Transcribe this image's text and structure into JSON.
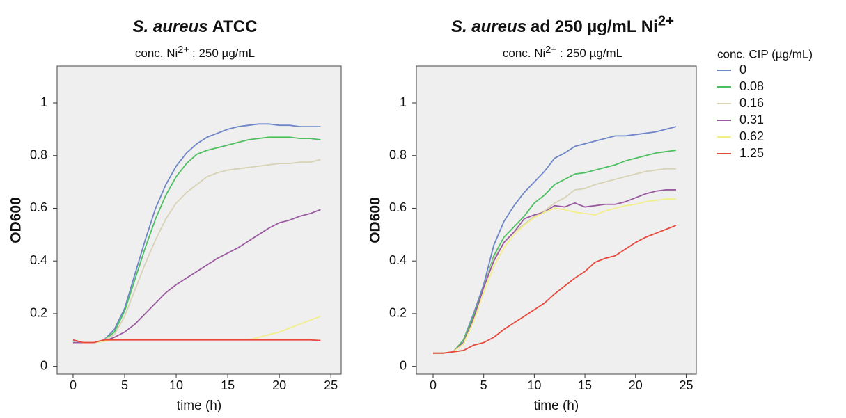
{
  "chart_data": [
    {
      "type": "line",
      "title": [
        "S. aureus",
        "ATCC"
      ],
      "subtitle": [
        "conc. Ni",
        "2+",
        ": 250 µg/mL"
      ],
      "x_label": "time (h)",
      "y_label": "OD600",
      "x": [
        0,
        1,
        2,
        3,
        4,
        5,
        6,
        7,
        8,
        9,
        10,
        11,
        12,
        13,
        14,
        15,
        16,
        17,
        18,
        19,
        20,
        21,
        22,
        23,
        24
      ],
      "xlim": [
        -1.55,
        26
      ],
      "xticks": [
        0,
        5,
        10,
        15,
        20,
        25
      ],
      "ylim": [
        -0.03,
        1.14
      ],
      "yticks": [
        0,
        0.2,
        0.4,
        0.6,
        0.8,
        1
      ],
      "grid": false,
      "series": [
        {
          "name": "0",
          "color": "#6e86c8",
          "values": [
            0.09,
            0.09,
            0.09,
            0.1,
            0.14,
            0.22,
            0.35,
            0.48,
            0.6,
            0.69,
            0.76,
            0.81,
            0.845,
            0.87,
            0.885,
            0.9,
            0.91,
            0.915,
            0.92,
            0.92,
            0.915,
            0.915,
            0.91,
            0.91,
            0.91
          ]
        },
        {
          "name": "0.08",
          "color": "#4cc060",
          "values": [
            0.09,
            0.09,
            0.09,
            0.1,
            0.13,
            0.21,
            0.33,
            0.45,
            0.56,
            0.65,
            0.72,
            0.77,
            0.805,
            0.82,
            0.83,
            0.84,
            0.85,
            0.86,
            0.865,
            0.87,
            0.87,
            0.87,
            0.865,
            0.865,
            0.86
          ]
        },
        {
          "name": "0.16",
          "color": "#d7d2b4",
          "values": [
            0.09,
            0.09,
            0.09,
            0.1,
            0.12,
            0.19,
            0.29,
            0.39,
            0.48,
            0.56,
            0.62,
            0.66,
            0.69,
            0.72,
            0.735,
            0.745,
            0.75,
            0.755,
            0.76,
            0.765,
            0.77,
            0.77,
            0.775,
            0.775,
            0.785
          ]
        },
        {
          "name": "0.31",
          "color": "#9a5aa0",
          "values": [
            0.09,
            0.09,
            0.09,
            0.095,
            0.11,
            0.13,
            0.16,
            0.2,
            0.24,
            0.28,
            0.31,
            0.335,
            0.36,
            0.385,
            0.41,
            0.43,
            0.45,
            0.475,
            0.5,
            0.525,
            0.545,
            0.555,
            0.57,
            0.58,
            0.595
          ]
        },
        {
          "name": "0.62",
          "color": "#f2ef8a",
          "values": [
            0.1,
            0.09,
            0.09,
            0.095,
            0.1,
            0.1,
            0.1,
            0.1,
            0.1,
            0.1,
            0.1,
            0.1,
            0.1,
            0.1,
            0.1,
            0.1,
            0.1,
            0.1,
            0.11,
            0.12,
            0.13,
            0.145,
            0.16,
            0.175,
            0.19
          ]
        },
        {
          "name": "1.25",
          "color": "#e8483c",
          "values": [
            0.1,
            0.09,
            0.09,
            0.1,
            0.1,
            0.1,
            0.1,
            0.1,
            0.1,
            0.1,
            0.1,
            0.1,
            0.1,
            0.1,
            0.1,
            0.1,
            0.1,
            0.1,
            0.1,
            0.1,
            0.1,
            0.1,
            0.1,
            0.1,
            0.098
          ]
        }
      ]
    },
    {
      "type": "line",
      "title": [
        "S. aureus",
        "ad 250 µg/mL Ni",
        "2+"
      ],
      "subtitle": [
        "conc. Ni",
        "2+",
        ": 250 µg/mL"
      ],
      "x_label": "time (h)",
      "y_label": "OD600",
      "legend_title": "conc. CIP (µg/mL)",
      "x": [
        0,
        1,
        2,
        3,
        4,
        5,
        6,
        7,
        8,
        9,
        10,
        11,
        12,
        13,
        14,
        15,
        16,
        17,
        18,
        19,
        20,
        21,
        22,
        23,
        24
      ],
      "xlim": [
        -1.65,
        26
      ],
      "xticks": [
        0,
        5,
        10,
        15,
        20,
        25
      ],
      "ylim": [
        -0.03,
        1.14
      ],
      "yticks": [
        0,
        0.2,
        0.4,
        0.6,
        0.8,
        1
      ],
      "grid": false,
      "series": [
        {
          "name": "0",
          "color": "#6e86c8",
          "values": [
            0.05,
            0.05,
            0.055,
            0.1,
            0.2,
            0.31,
            0.46,
            0.55,
            0.61,
            0.66,
            0.7,
            0.74,
            0.79,
            0.81,
            0.835,
            0.845,
            0.855,
            0.865,
            0.875,
            0.875,
            0.88,
            0.885,
            0.89,
            0.9,
            0.91
          ]
        },
        {
          "name": "0.08",
          "color": "#4cc060",
          "values": [
            0.05,
            0.05,
            0.055,
            0.1,
            0.19,
            0.3,
            0.42,
            0.49,
            0.53,
            0.57,
            0.62,
            0.65,
            0.69,
            0.71,
            0.73,
            0.735,
            0.745,
            0.755,
            0.765,
            0.78,
            0.79,
            0.8,
            0.81,
            0.815,
            0.82
          ]
        },
        {
          "name": "0.16",
          "color": "#d7d2b4",
          "values": [
            0.05,
            0.05,
            0.055,
            0.09,
            0.18,
            0.3,
            0.41,
            0.47,
            0.51,
            0.54,
            0.57,
            0.59,
            0.62,
            0.64,
            0.67,
            0.675,
            0.69,
            0.7,
            0.71,
            0.72,
            0.73,
            0.74,
            0.745,
            0.75,
            0.75
          ]
        },
        {
          "name": "0.31",
          "color": "#9a5aa0",
          "values": [
            0.05,
            0.05,
            0.055,
            0.09,
            0.18,
            0.3,
            0.4,
            0.47,
            0.51,
            0.56,
            0.575,
            0.585,
            0.61,
            0.605,
            0.62,
            0.605,
            0.61,
            0.615,
            0.615,
            0.625,
            0.64,
            0.655,
            0.665,
            0.67,
            0.67
          ]
        },
        {
          "name": "0.62",
          "color": "#f2ef8a",
          "values": [
            0.05,
            0.05,
            0.055,
            0.085,
            0.17,
            0.28,
            0.38,
            0.45,
            0.5,
            0.535,
            0.565,
            0.585,
            0.6,
            0.595,
            0.585,
            0.58,
            0.575,
            0.59,
            0.6,
            0.61,
            0.615,
            0.625,
            0.63,
            0.635,
            0.635
          ]
        },
        {
          "name": "1.25",
          "color": "#e8483c",
          "values": [
            0.05,
            0.05,
            0.055,
            0.06,
            0.08,
            0.09,
            0.11,
            0.14,
            0.165,
            0.19,
            0.215,
            0.24,
            0.275,
            0.305,
            0.335,
            0.36,
            0.395,
            0.41,
            0.42,
            0.445,
            0.47,
            0.49,
            0.505,
            0.52,
            0.535
          ]
        }
      ]
    }
  ]
}
